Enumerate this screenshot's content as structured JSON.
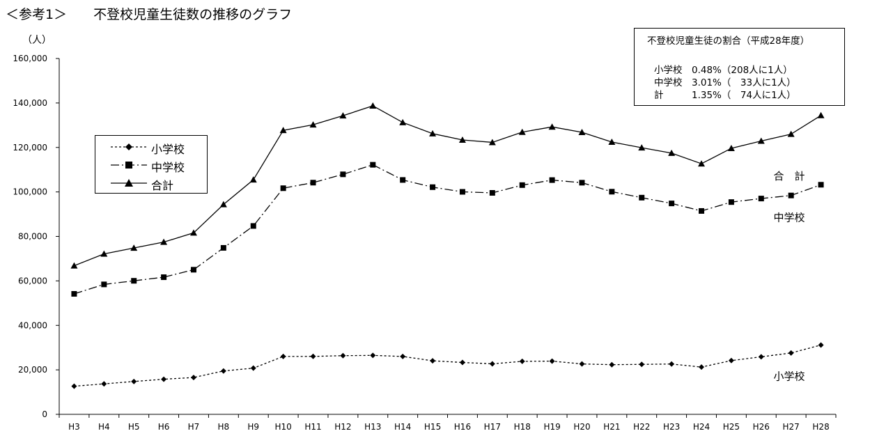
{
  "page": {
    "title": "＜参考1＞　　不登校児童生徒数の推移のグラフ"
  },
  "info_box": {
    "title": "不登校児童生徒の割合（平成28年度）",
    "rows": [
      "小学校　0.48%（208人に1人）",
      "中学校　3.01%（　33人に1人）",
      "計　　　1.35%（　74人に1人）"
    ]
  },
  "legend": {
    "items": [
      {
        "label": "小学校",
        "marker": "diamond",
        "line": "dashed"
      },
      {
        "label": "中学校",
        "marker": "square",
        "line": "dashdot"
      },
      {
        "label": "合計",
        "marker": "triangle",
        "line": "solid"
      }
    ]
  },
  "chart_data": {
    "type": "line",
    "ylabel": "（人）",
    "ylim": [
      0,
      160000
    ],
    "yticks": [
      0,
      20000,
      40000,
      60000,
      80000,
      100000,
      120000,
      140000,
      160000
    ],
    "ytick_labels": [
      "0",
      "20,000",
      "40,000",
      "60,000",
      "80,000",
      "100,000",
      "120,000",
      "140,000",
      "160,000"
    ],
    "categories": [
      "H3",
      "H4",
      "H5",
      "H6",
      "H7",
      "H8",
      "H9",
      "H10",
      "H11",
      "H12",
      "H13",
      "H14",
      "H15",
      "H16",
      "H17",
      "H18",
      "H19",
      "H20",
      "H21",
      "H22",
      "H23",
      "H24",
      "H25",
      "H26",
      "H27",
      "H28"
    ],
    "grid": false,
    "legend_position": "left",
    "series": [
      {
        "name": "小学校",
        "end_label": "小学校",
        "marker": "diamond",
        "line": "dashed",
        "values": [
          12645,
          13710,
          14769,
          15786,
          16569,
          19498,
          20765,
          26017,
          26047,
          26373,
          26511,
          26017,
          24077,
          23318,
          22709,
          23825,
          23927,
          22652,
          22327,
          22463,
          22622,
          21243,
          24175,
          25864,
          27583,
          31151
        ]
      },
      {
        "name": "中学校",
        "end_label": "中学校",
        "marker": "square",
        "line": "dashdot",
        "values": [
          54172,
          58421,
          60039,
          61663,
          65022,
          74853,
          84701,
          101675,
          104180,
          107913,
          112211,
          105383,
          102149,
          100040,
          99578,
          103069,
          105328,
          104153,
          100105,
          97428,
          94836,
          91446,
          95442,
          97033,
          98408,
          103235
        ]
      },
      {
        "name": "合計",
        "end_label": "合　計",
        "marker": "triangle",
        "line": "solid",
        "values": [
          66817,
          72131,
          74808,
          77449,
          81591,
          94351,
          105466,
          127692,
          130227,
          134286,
          138722,
          131252,
          126226,
          123358,
          122287,
          126894,
          129255,
          126805,
          122432,
          119891,
          117458,
          112689,
          119617,
          122897,
          125991,
          134398
        ]
      }
    ]
  }
}
